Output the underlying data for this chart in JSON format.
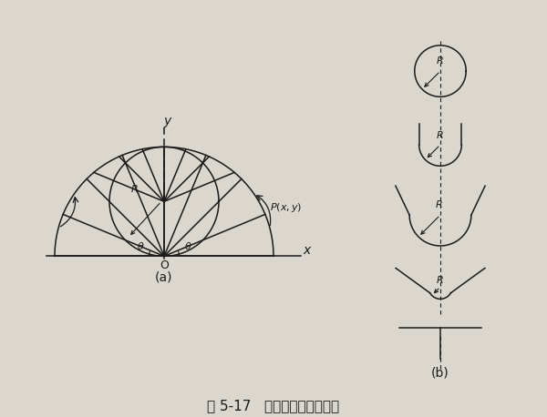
{
  "bg_color": "#dbd7ce",
  "line_color": "#1a1a1a",
  "title": "图 5-17   中心弯曲成型变形图",
  "label_a": "(a)",
  "label_b": "(b)",
  "fig_width": 6.0,
  "fig_height": 4.58,
  "lw": 1.1
}
